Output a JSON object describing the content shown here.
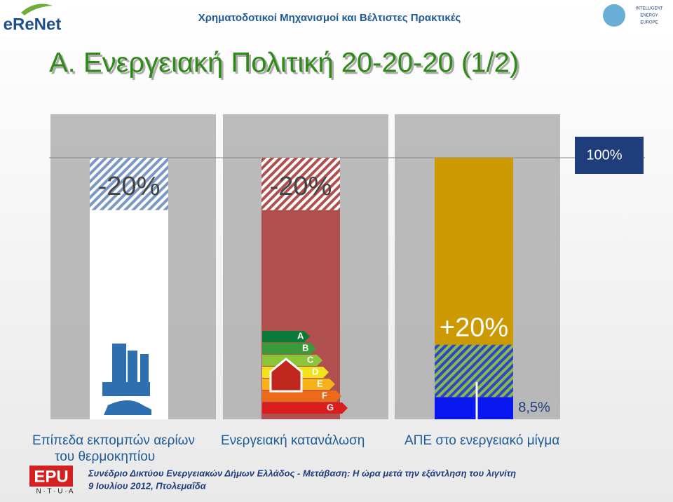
{
  "header": {
    "logo_left": "eReNet",
    "subtitle": "Χρηματοδοτικοί Μηχανισμοί και Βέλτιστες Πρακτικές",
    "logo_right": [
      "INTELLIGENT",
      "ENERGY",
      "EUROPE"
    ]
  },
  "title": "A. Ενεργειακή Πολιτική 20-20-20 (1/2)",
  "chart_data": {
    "type": "bar",
    "categories": [
      "Επίπεδα εκπομπών αερίων του θερμοκηπίου",
      "Ενεργειακή κατανάλωση",
      "ΑΠΕ στο ενεργειακό μίγμα"
    ],
    "level": 100,
    "level_label": "100%",
    "changes": [
      -20,
      -20,
      20
    ],
    "change_labels": [
      "-20%",
      "-20%",
      "+20%"
    ],
    "res_share": 8.5,
    "res_share_label": "8,5%",
    "energy_classes": [
      "A",
      "B",
      "C",
      "D",
      "E",
      "F",
      "G"
    ],
    "colors": [
      "#ffffff",
      "#b0504e",
      "#cc9900"
    ]
  },
  "footer": {
    "logo": "EPU",
    "logo_sub": "N · T · U · A",
    "event": "Συνέδριο Δικτύου Ενεργειακών Δήμων Ελλάδος - Μετάβαση: Η ώρα μετά την εξάντληση του λιγνίτη",
    "date": "9 Ιουλίου 2012, Πτολεμαΐδα"
  }
}
